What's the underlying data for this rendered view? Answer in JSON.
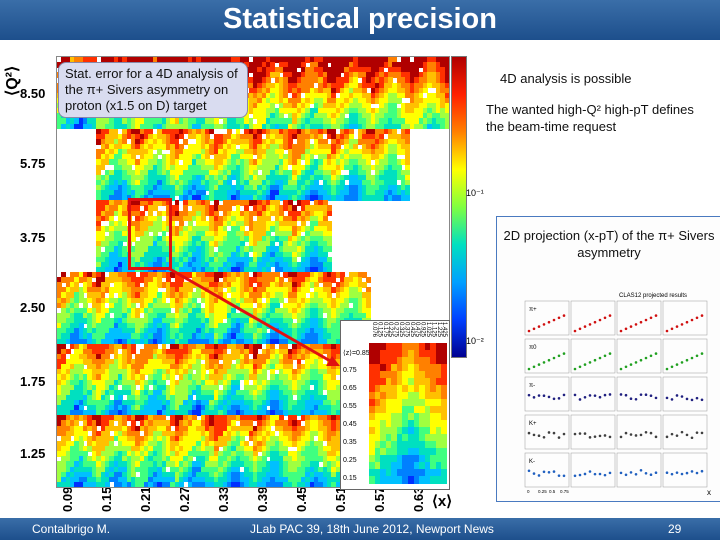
{
  "header": {
    "title": "Statistical precision"
  },
  "plot": {
    "y_axis_label": "⟨Q²⟩",
    "x_axis_label": "⟨x⟩",
    "q2_ticks": [
      "8.50",
      "5.75",
      "3.75",
      "2.50",
      "1.75",
      "1.25"
    ],
    "x_ticks": [
      "0.09",
      "0.15",
      "0.21",
      "0.27",
      "0.33",
      "0.39",
      "0.45",
      "0.51",
      "0.57",
      "0.63"
    ],
    "colorbar_labels": [
      "10⁻¹",
      "10⁻²"
    ],
    "note_stat": "Stat. error for a 4D analysis of the π+ Sivers asymmetry on proton (x1.5 on D) target"
  },
  "notes": {
    "line1": "4D analysis is possible",
    "line2": "The wanted high-Q² high-pT defines the beam-time request"
  },
  "zoom": {
    "header": "⟨z⟩=0.85",
    "z_ticks": [
      "0.75",
      "0.65",
      "0.55",
      "0.45",
      "0.35",
      "0.25",
      "0.15"
    ],
    "pt_ticks": [
      "0.076",
      "0.125",
      "0.175",
      "0.225",
      "0.275",
      "0.325",
      "0.375",
      "0.425",
      "0.475",
      "0.925",
      "1.025",
      "1.125",
      "1.225",
      "1.425"
    ]
  },
  "projection": {
    "title": "2D projection (x-pT) of the π+ Sivers asymmetry",
    "panel_title": "CLAS12 projected results",
    "particles": [
      "π+",
      "π0",
      "π-",
      "K+",
      "K-"
    ],
    "y_label": "2⟨sin(φh-φs)⟩UT",
    "x_label": "x",
    "x_ticks": [
      "0",
      "0.25",
      "0.5",
      "0.75"
    ]
  },
  "footer": {
    "left": "Contalbrigo M.",
    "center": "JLab PAC 39, 18th June 2012, Newport News",
    "page": "29"
  },
  "colors": {
    "header": "#1d4f8c",
    "highlight": "#e01010",
    "note_box": "#d9dcf0"
  }
}
